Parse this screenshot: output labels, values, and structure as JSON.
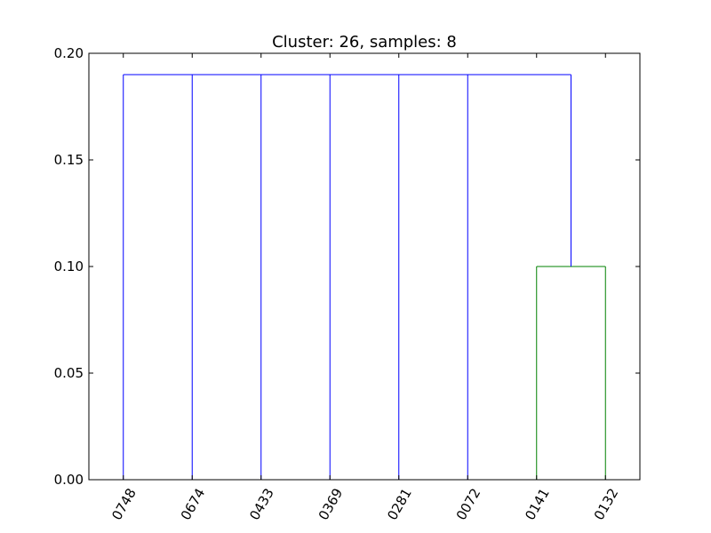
{
  "chart_data": {
    "type": "dendrogram",
    "title": "Cluster: 26, samples: 8",
    "xlabel": "",
    "ylabel": "",
    "ylim": [
      0,
      0.2
    ],
    "y_ticks": [
      {
        "value": 0.0,
        "label": "0.00"
      },
      {
        "value": 0.05,
        "label": "0.05"
      },
      {
        "value": 0.1,
        "label": "0.10"
      },
      {
        "value": 0.15,
        "label": "0.15"
      },
      {
        "value": 0.2,
        "label": "0.20"
      }
    ],
    "leaves": [
      "0748",
      "0674",
      "0433",
      "0369",
      "0281",
      "0072",
      "0141",
      "0132"
    ],
    "merges": [
      {
        "left_leaves": [
          6
        ],
        "right_leaves": [
          7
        ],
        "height": 0.1,
        "color": "#008000"
      },
      {
        "left_leaves": [
          0,
          1,
          2,
          3,
          4,
          5
        ],
        "right_leaves": [
          6,
          7
        ],
        "height": 0.19,
        "color": "#0000ff"
      }
    ],
    "grid": false,
    "legend": "none",
    "colors": {
      "above_threshold": "#0000ff",
      "cluster": "#008000"
    }
  }
}
